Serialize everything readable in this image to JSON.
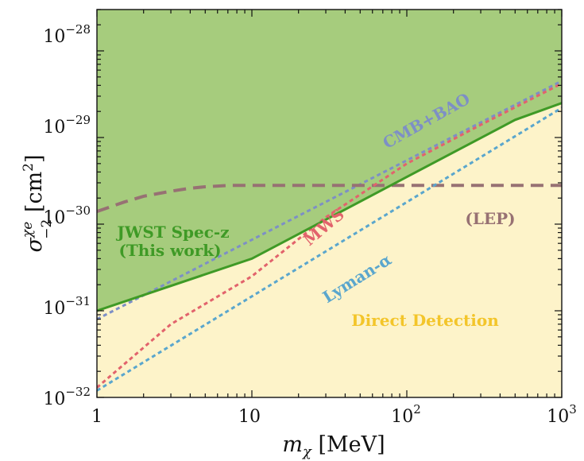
{
  "chart_data": {
    "type": "area",
    "title": "",
    "xlabel": {
      "symbol": "m",
      "sub": "χ",
      "unit": " [MeV]"
    },
    "ylabel": {
      "symbol": "σ",
      "sup": "χe",
      "sub": "−2",
      "unit": " [cm",
      "unit_sup": "2",
      "unit_close": "]"
    },
    "xscale": "log",
    "yscale": "log",
    "xlim": [
      1,
      1000
    ],
    "ylim": [
      1e-32,
      3e-28
    ],
    "grid": false,
    "x_ticks": [
      {
        "value": 1,
        "base": "1",
        "exp": ""
      },
      {
        "value": 10,
        "base": "10",
        "exp": ""
      },
      {
        "value": 100,
        "base": "10",
        "exp": "2"
      },
      {
        "value": 1000,
        "base": "10",
        "exp": "3"
      }
    ],
    "y_ticks": [
      {
        "value": 1e-32,
        "base": "10",
        "exp": "−32"
      },
      {
        "value": 1e-31,
        "base": "10",
        "exp": "−31"
      },
      {
        "value": 1e-30,
        "base": "10",
        "exp": "−30"
      },
      {
        "value": 1e-29,
        "base": "10",
        "exp": "−29"
      },
      {
        "value": 1e-28,
        "base": "10",
        "exp": "−28"
      }
    ],
    "background_color": "#fdf3c9",
    "series": [
      {
        "name": "JWST Spec-z",
        "name_line2": "(This work)",
        "role": "excluded-region",
        "fill": "#a6cc7d",
        "color": "#3f9a26",
        "style": "solid",
        "x": [
          1,
          10,
          500,
          1000
        ],
        "y": [
          1e-31,
          4e-31,
          1.6e-29,
          2.5e-29
        ]
      },
      {
        "name": "CMB+BAO",
        "color": "#7d8fc6",
        "style": "dotted",
        "x": [
          1,
          1000
        ],
        "y": [
          8e-32,
          4.5e-29
        ]
      },
      {
        "name": "MWS",
        "color": "#e2636c",
        "style": "dotted",
        "x": [
          1,
          3,
          10,
          30,
          100,
          300,
          1000
        ],
        "y": [
          1.3e-32,
          7e-32,
          2.5e-31,
          1.2e-30,
          5e-30,
          1.4e-29,
          4.2e-29
        ]
      },
      {
        "name": "Lyman-α",
        "color": "#5aa6cd",
        "style": "dotted",
        "x": [
          1,
          1000
        ],
        "y": [
          1.2e-32,
          2.2e-29
        ]
      },
      {
        "name": "(LEP)",
        "color": "#977173",
        "style": "dashed",
        "x": [
          1,
          1.5,
          2,
          3,
          4,
          5,
          6,
          7,
          1000
        ],
        "y": [
          1.4e-30,
          1.8e-30,
          2.1e-30,
          2.4e-30,
          2.6e-30,
          2.7e-30,
          2.75e-30,
          2.8e-30,
          2.8e-30
        ]
      }
    ],
    "annotations": [
      {
        "text": "Direct Detection",
        "color": "#f3c52a"
      }
    ]
  }
}
